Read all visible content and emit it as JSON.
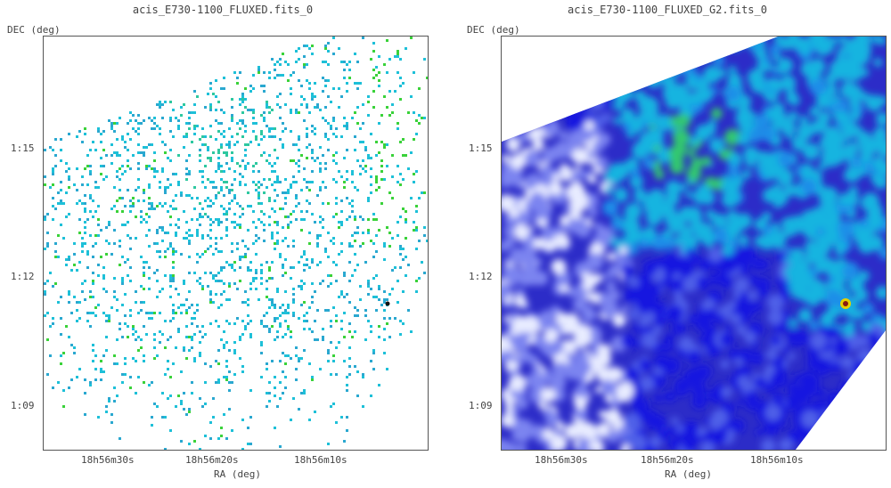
{
  "panels": [
    {
      "title": "acis_E730-1100_FLUXED.fits_0",
      "ylabel": "DEC (deg)",
      "xlabel": "RA (deg)",
      "yticks": [
        "1:15",
        "1:12",
        "1:09"
      ],
      "xticks": [
        "18h56m30s",
        "18h56m20s",
        "18h56m10s"
      ],
      "style": "scatter-pixels"
    },
    {
      "title": "acis_E730-1100_FLUXED_G2.fits_0",
      "ylabel": "DEC (deg)",
      "xlabel": "RA (deg)",
      "yticks": [
        "1:15",
        "1:12",
        "1:09"
      ],
      "xticks": [
        "18h56m30s",
        "18h56m20s",
        "18h56m10s"
      ],
      "style": "smoothed"
    }
  ],
  "colors": {
    "cyan": "#1ec0d8",
    "green": "#3ad23a",
    "blue": "#1418e0",
    "deep_blue": "#2c2cc8",
    "light_blue": "#7c84f0"
  }
}
